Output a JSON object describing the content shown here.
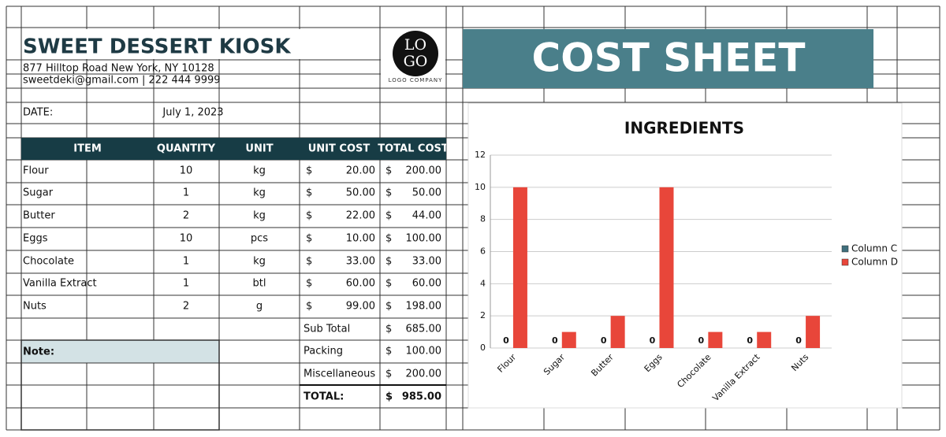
{
  "header": {
    "title": "SWEET DESSERT KIOSK",
    "address": "877 Hilltop Road New York, NY 10128",
    "contact": "sweetdeki@gmail.com | 222 444 9999",
    "logo_top": "LO",
    "logo_bottom": "GO",
    "logo_caption": "LOGO COMPANY"
  },
  "banner": "COST SHEET",
  "date_label": "DATE:",
  "date": "July 1, 2023",
  "table": {
    "columns": [
      "ITEM",
      "QUANTITY",
      "UNIT",
      "UNIT COST",
      "TOTAL COST"
    ],
    "rows": [
      [
        "Flour",
        "10",
        "kg",
        "$",
        "20.00",
        "$",
        "200.00"
      ],
      [
        "Sugar",
        "1",
        "kg",
        "$",
        "50.00",
        "$",
        "50.00"
      ],
      [
        "Butter",
        "2",
        "kg",
        "$",
        "22.00",
        "$",
        "44.00"
      ],
      [
        "Eggs",
        "10",
        "pcs",
        "$",
        "10.00",
        "$",
        "100.00"
      ],
      [
        "Chocolate",
        "1",
        "kg",
        "$",
        "33.00",
        "$",
        "33.00"
      ],
      [
        "Vanilla Extract",
        "1",
        "btl",
        "$",
        "60.00",
        "$",
        "60.00"
      ],
      [
        "Nuts",
        "2",
        "g",
        "$",
        "99.00",
        "$",
        "198.00"
      ]
    ],
    "summary": [
      [
        "Sub Total",
        "$",
        "685.00"
      ],
      [
        "Packing",
        "$",
        "100.00"
      ],
      [
        "Miscellaneous",
        "$",
        "200.00"
      ],
      [
        "TOTAL:",
        "$",
        "985.00"
      ]
    ]
  },
  "note_label": "Note:",
  "chart_data": {
    "type": "bar",
    "title": "INGREDIENTS",
    "categories": [
      "Flour",
      "Sugar",
      "Butter",
      "Eggs",
      "Chocolate",
      "Vanilla Extract",
      "Nuts"
    ],
    "series": [
      {
        "name": "Column C",
        "color": "#3f6f7d",
        "values": [
          0,
          0,
          0,
          0,
          0,
          0,
          0
        ],
        "data_labels": true
      },
      {
        "name": "Column D",
        "color": "#e8463a",
        "values": [
          10,
          1,
          2,
          10,
          1,
          1,
          2
        ],
        "data_labels": false
      }
    ],
    "ylim": [
      0,
      12
    ],
    "yticks": [
      0,
      2,
      4,
      6,
      8,
      10,
      12
    ],
    "grid": true,
    "legend": "right"
  }
}
